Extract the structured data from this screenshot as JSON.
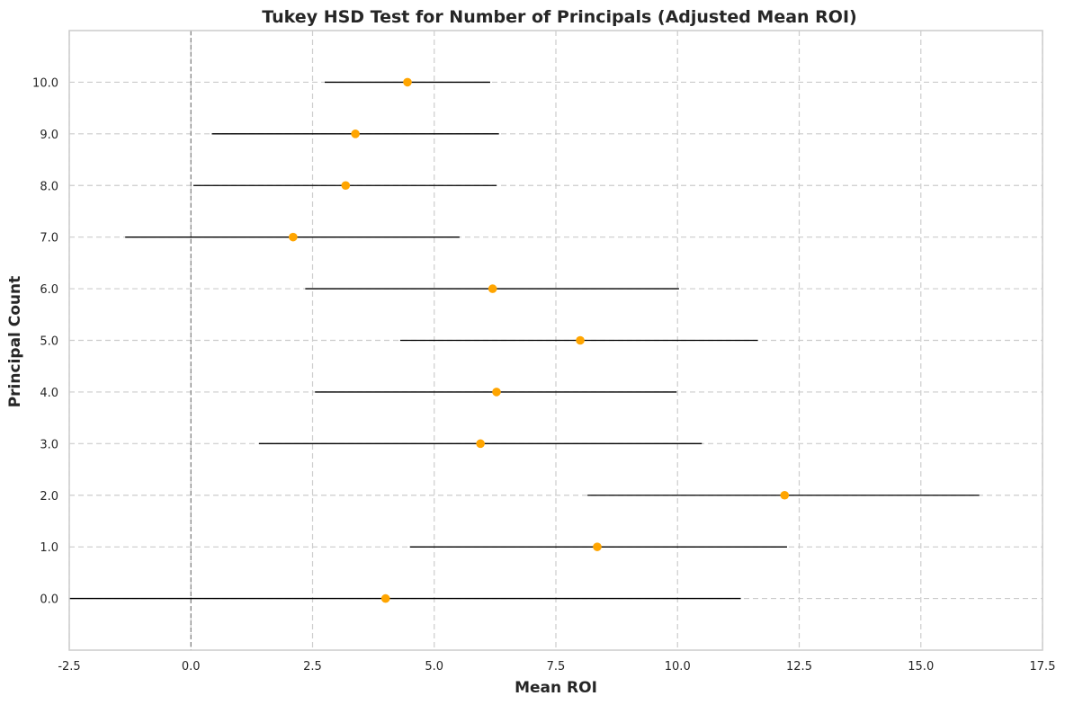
{
  "chart_data": {
    "type": "scatter",
    "subtype": "point-with-confidence-interval",
    "title": "Tukey HSD Test for Number of Principals (Adjusted Mean ROI)",
    "xlabel": "Mean ROI",
    "ylabel": "Principal Count",
    "xlim": [
      -2.5,
      17.5
    ],
    "ylim": [
      -1,
      11
    ],
    "xticks": [
      "-2.5",
      "0.0",
      "2.5",
      "5.0",
      "7.5",
      "10.0",
      "12.5",
      "15.0",
      "17.5"
    ],
    "xtick_values": [
      -2.5,
      0,
      2.5,
      5,
      7.5,
      10,
      12.5,
      15,
      17.5
    ],
    "yticks": [
      "0.0",
      "1.0",
      "2.0",
      "3.0",
      "4.0",
      "5.0",
      "6.0",
      "7.0",
      "8.0",
      "9.0",
      "10.0"
    ],
    "ytick_values": [
      0,
      1,
      2,
      3,
      4,
      5,
      6,
      7,
      8,
      9,
      10
    ],
    "grid": true,
    "reference_line_x": 0,
    "points": [
      {
        "y": 0,
        "mean": 4.0,
        "low": -2.5,
        "high": 11.3
      },
      {
        "y": 1,
        "mean": 8.35,
        "low": 4.5,
        "high": 12.25
      },
      {
        "y": 2,
        "mean": 12.2,
        "low": 8.15,
        "high": 16.2
      },
      {
        "y": 3,
        "mean": 5.95,
        "low": 1.4,
        "high": 10.5
      },
      {
        "y": 4,
        "mean": 6.28,
        "low": 2.55,
        "high": 9.98
      },
      {
        "y": 5,
        "mean": 8.0,
        "low": 4.3,
        "high": 11.65
      },
      {
        "y": 6,
        "mean": 6.2,
        "low": 2.35,
        "high": 10.03
      },
      {
        "y": 7,
        "mean": 2.1,
        "low": -1.35,
        "high": 5.52
      },
      {
        "y": 8,
        "mean": 3.18,
        "low": 0.05,
        "high": 6.28
      },
      {
        "y": 9,
        "mean": 3.38,
        "low": 0.43,
        "high": 6.33
      },
      {
        "y": 10,
        "mean": 4.45,
        "low": 2.75,
        "high": 6.15
      }
    ],
    "colors": {
      "point": "#ffa500",
      "interval": "#000000",
      "grid": "#cccccc",
      "reference_line": "#808080",
      "frame": "#cccccc"
    }
  }
}
